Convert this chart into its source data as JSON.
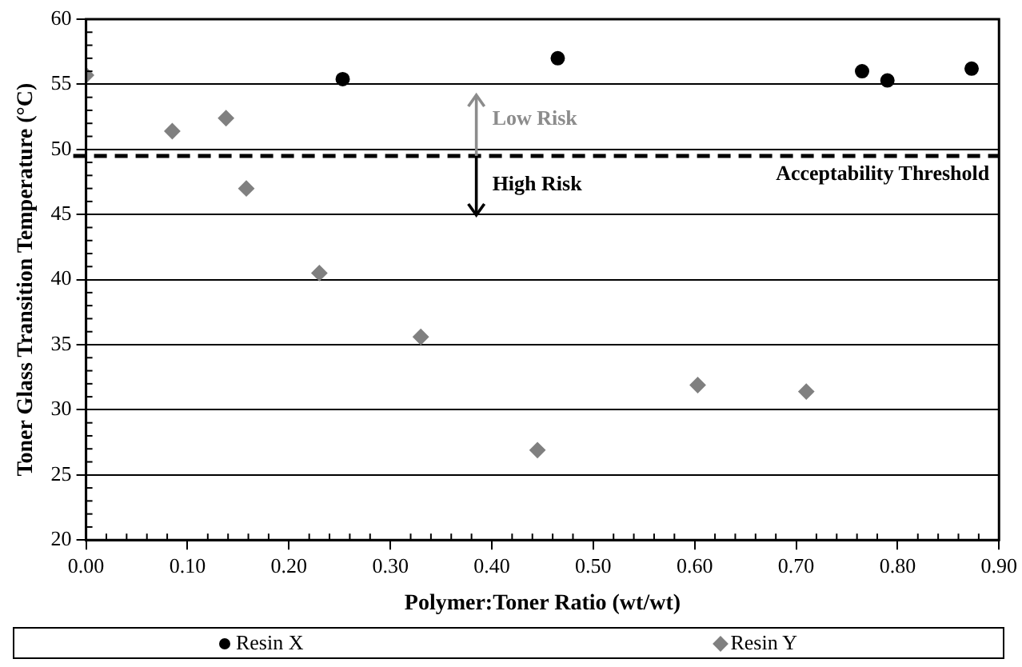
{
  "chart_data": {
    "type": "scatter",
    "xlabel": "Polymer:Toner Ratio (wt/wt)",
    "ylabel": "Toner Glass Transition Temperature (°C)",
    "xlim": [
      0,
      0.9
    ],
    "xticks": [
      {
        "value": 0,
        "label": "0.00"
      },
      {
        "value": 0.1,
        "label": "0.10"
      },
      {
        "value": 0.2,
        "label": "0.20"
      },
      {
        "value": 0.3,
        "label": "0.30"
      },
      {
        "value": 0.4,
        "label": "0.40"
      },
      {
        "value": 0.5,
        "label": "0.50"
      },
      {
        "value": 0.6,
        "label": "0.60"
      },
      {
        "value": 0.7,
        "label": "0.70"
      },
      {
        "value": 0.8,
        "label": "0.80"
      },
      {
        "value": 0.9,
        "label": "0.90"
      }
    ],
    "ylim": [
      20,
      60
    ],
    "yticks": [
      20,
      25,
      30,
      35,
      40,
      45,
      50,
      55,
      60
    ],
    "grid": "y",
    "legend": "bottom",
    "series": [
      {
        "name": "Resin X",
        "color": "#000000",
        "marker": "circle",
        "x": [
          0.253,
          0.465,
          0.765,
          0.79,
          0.873
        ],
        "values": [
          55.4,
          57.0,
          56.0,
          55.3,
          56.2
        ]
      },
      {
        "name": "Resin Y",
        "color": "#808080",
        "marker": "diamond",
        "x": [
          0,
          0.085,
          0.138,
          0.158,
          0.23,
          0.33,
          0.445,
          0.603,
          0.71
        ],
        "values": [
          55.7,
          51.4,
          52.4,
          47.0,
          40.5,
          35.6,
          26.9,
          31.9,
          31.4
        ]
      }
    ],
    "ref_lines": [
      {
        "axis": "y",
        "value": 49.5,
        "label": "Acceptability Threshold",
        "color": "#000000",
        "line_style": "dashed"
      }
    ],
    "annotations": [
      "Low Risk",
      "High Risk"
    ]
  }
}
